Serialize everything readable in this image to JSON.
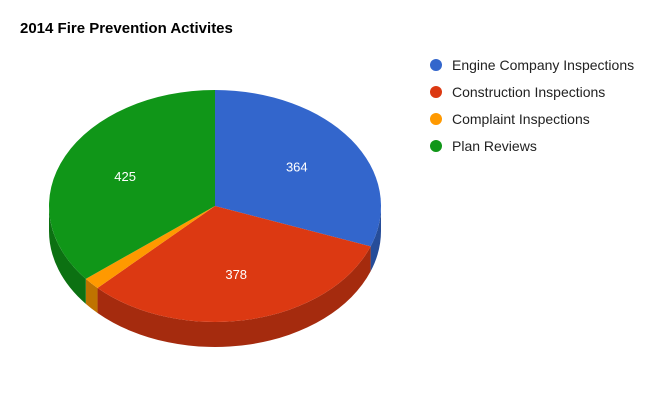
{
  "chart_data": {
    "type": "pie",
    "title": "2014 Fire Prevention Activites",
    "slices": [
      {
        "label": "Engine Company Inspections",
        "value": 364,
        "color": "#3366cc",
        "side_color": "#264d99",
        "show_label": true
      },
      {
        "label": "Construction Inspections",
        "value": 378,
        "color": "#dc3912",
        "side_color": "#a52b0e",
        "show_label": true
      },
      {
        "label": "Complaint Inspections",
        "value": 20,
        "color": "#ff9900",
        "side_color": "#bf7300",
        "show_label": false
      },
      {
        "label": "Plan Reviews",
        "value": 425,
        "color": "#109618",
        "side_color": "#0c7112",
        "show_label": true
      }
    ],
    "legend_position": "right",
    "three_d": true
  }
}
